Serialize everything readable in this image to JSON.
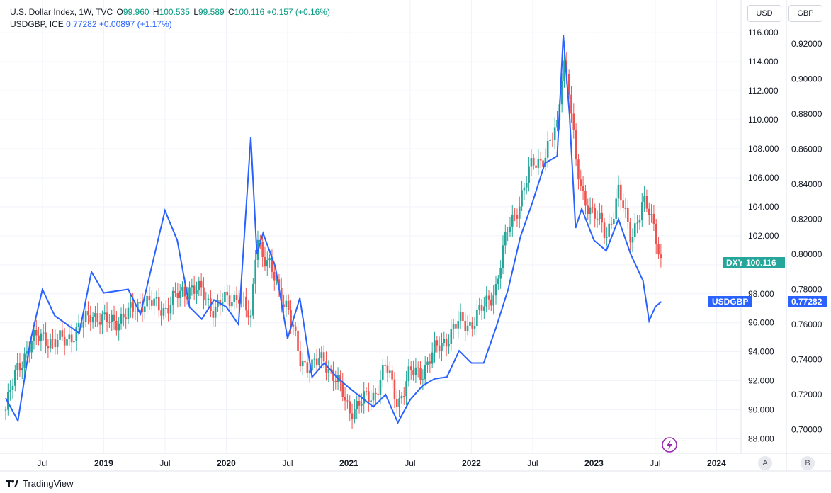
{
  "legend": {
    "dxy": {
      "name": "U.S. Dollar Index, 1W, TVC",
      "o_label": "O",
      "o": "99.960",
      "h_label": "H",
      "h": "100.535",
      "l_label": "L",
      "l": "99.589",
      "c_label": "C",
      "c": "100.116",
      "change": "+0.157 (+0.16%)"
    },
    "usdgbp": {
      "name": "USDGBP, ICE",
      "value": "0.77282",
      "change": "+0.00897 (+1.17%)"
    }
  },
  "scale_buttons": {
    "left": "USD",
    "right": "GBP"
  },
  "axis_badges": {
    "left": "A",
    "right": "B"
  },
  "footer": {
    "brand": "TradingView"
  },
  "colors": {
    "up": "#26a69a",
    "down": "#ef5350",
    "line": "#2962ff",
    "grid": "#f0f3fa",
    "dxy_tag": "#26a69a",
    "usdgbp_tag": "#2962ff"
  },
  "chart_data": {
    "type": "line",
    "x_ticks": [
      "Jul",
      "2019",
      "Jul",
      "2020",
      "Jul",
      "2021",
      "Jul",
      "2022",
      "Jul",
      "2023",
      "Jul",
      "2024"
    ],
    "left_axis": {
      "ylim": [
        87.0,
        116.5
      ],
      "ticks": [
        "88.000",
        "90.000",
        "92.000",
        "94.000",
        "96.000",
        "98.000",
        "100.000",
        "102.000",
        "104.000",
        "106.000",
        "108.000",
        "110.000",
        "112.000",
        "114.000",
        "116.000"
      ]
    },
    "right_axis": {
      "ylim": [
        0.6865,
        0.9305
      ],
      "ticks": [
        "0.70000",
        "0.72000",
        "0.74000",
        "0.76000",
        "0.78000",
        "0.80000",
        "0.82000",
        "0.84000",
        "0.86000",
        "0.88000",
        "0.90000",
        "0.92000"
      ]
    },
    "current_tags": {
      "dxy": {
        "label": "DXY",
        "value": "100.116",
        "price": 100.116
      },
      "usdgbp": {
        "label": "USDGBP",
        "value": "0.77282",
        "price": 0.77282
      }
    },
    "series": [
      {
        "name": "DXY",
        "style": "candles",
        "x": [
          2018.2,
          2018.3,
          2018.4,
          2018.5,
          2018.6,
          2018.8,
          2018.9,
          2019.0,
          2019.2,
          2019.3,
          2019.5,
          2019.6,
          2019.7,
          2019.8,
          2019.9,
          2020.0,
          2020.1,
          2020.2,
          2020.25,
          2020.3,
          2020.4,
          2020.5,
          2020.6,
          2020.7,
          2020.8,
          2020.9,
          2021.0,
          2021.2,
          2021.3,
          2021.4,
          2021.5,
          2021.6,
          2021.7,
          2021.8,
          2021.9,
          2022.0,
          2022.1,
          2022.2,
          2022.3,
          2022.4,
          2022.5,
          2022.6,
          2022.7,
          2022.75,
          2022.8,
          2022.85,
          2022.9,
          2023.0,
          2023.1,
          2023.2,
          2023.3,
          2023.4,
          2023.45,
          2023.5,
          2023.55
        ],
        "values": [
          90.0,
          93.0,
          94.5,
          95.2,
          94.5,
          95.5,
          96.8,
          96.0,
          96.5,
          97.5,
          97.0,
          97.8,
          98.5,
          98.0,
          97.0,
          97.5,
          98.0,
          96.0,
          102.5,
          100.5,
          99.0,
          97.0,
          93.5,
          93.0,
          93.5,
          92.0,
          90.0,
          91.0,
          93.0,
          90.5,
          92.5,
          92.7,
          94.0,
          95.0,
          96.0,
          96.0,
          97.0,
          98.5,
          102.5,
          104.5,
          107.0,
          107.5,
          109.5,
          114.5,
          112.0,
          107.0,
          105.0,
          103.5,
          102.0,
          105.0,
          102.0,
          104.2,
          103.5,
          102.5,
          100.1
        ]
      },
      {
        "name": "USDGBP",
        "style": "line",
        "x": [
          2018.2,
          2018.3,
          2018.4,
          2018.5,
          2018.6,
          2018.8,
          2018.9,
          2019.0,
          2019.2,
          2019.3,
          2019.5,
          2019.6,
          2019.7,
          2019.8,
          2019.9,
          2020.0,
          2020.1,
          2020.2,
          2020.25,
          2020.3,
          2020.4,
          2020.5,
          2020.6,
          2020.7,
          2020.8,
          2020.9,
          2021.0,
          2021.2,
          2021.3,
          2021.4,
          2021.5,
          2021.6,
          2021.7,
          2021.8,
          2021.9,
          2022.0,
          2022.1,
          2022.2,
          2022.3,
          2022.4,
          2022.5,
          2022.6,
          2022.7,
          2022.75,
          2022.8,
          2022.85,
          2022.9,
          2023.0,
          2023.1,
          2023.2,
          2023.3,
          2023.4,
          2023.45,
          2023.5,
          2023.55
        ],
        "values": [
          0.718,
          0.705,
          0.75,
          0.78,
          0.765,
          0.755,
          0.79,
          0.778,
          0.78,
          0.766,
          0.825,
          0.808,
          0.77,
          0.763,
          0.774,
          0.77,
          0.76,
          0.867,
          0.8,
          0.812,
          0.793,
          0.752,
          0.775,
          0.73,
          0.738,
          0.73,
          0.724,
          0.713,
          0.72,
          0.704,
          0.717,
          0.725,
          0.729,
          0.73,
          0.745,
          0.738,
          0.738,
          0.758,
          0.78,
          0.81,
          0.83,
          0.852,
          0.856,
          0.925,
          0.88,
          0.815,
          0.826,
          0.808,
          0.802,
          0.82,
          0.8,
          0.785,
          0.762,
          0.77,
          0.773
        ]
      }
    ]
  }
}
